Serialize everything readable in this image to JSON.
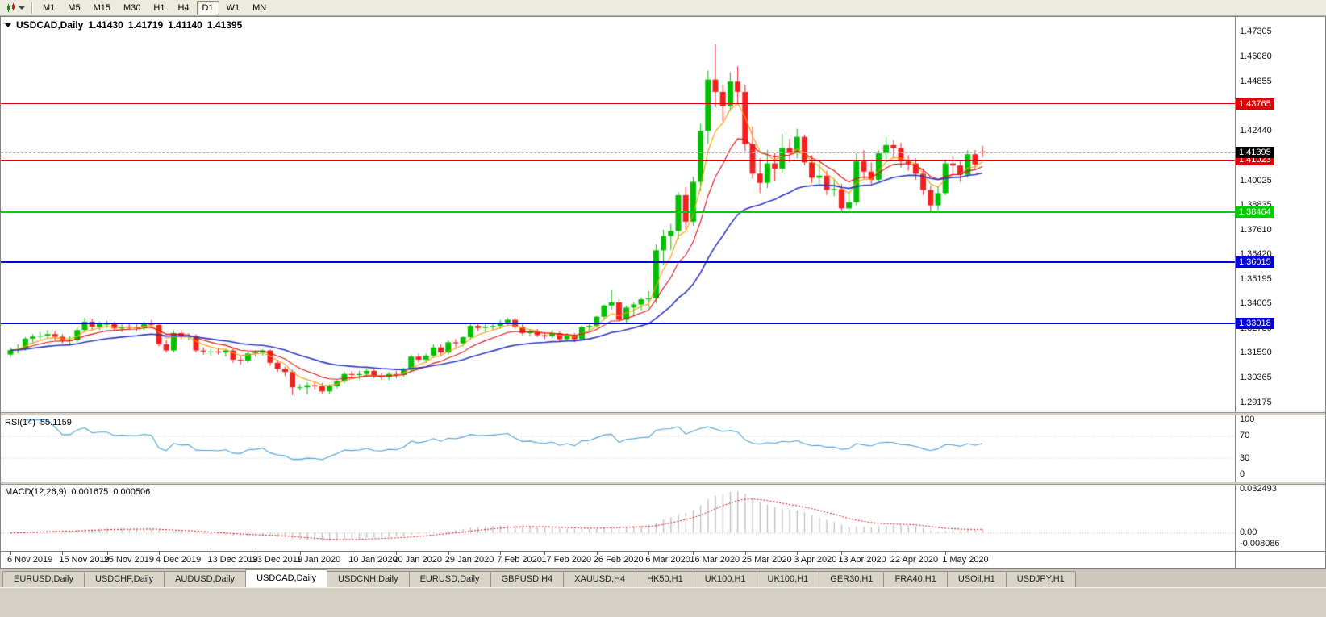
{
  "toolbar": {
    "timeframes": [
      "M1",
      "M5",
      "M15",
      "M30",
      "H1",
      "H4",
      "D1",
      "W1",
      "MN"
    ],
    "active_timeframe": "D1"
  },
  "chart_header": {
    "symbol": "USDCAD,Daily",
    "open": "1.41430",
    "high": "1.41719",
    "low": "1.41140",
    "close": "1.41395"
  },
  "main_panel": {
    "y_ticks": [
      1.47305,
      1.4608,
      1.44855,
      1.4244,
      1.40025,
      1.38835,
      1.3761,
      1.3642,
      1.35195,
      1.34005,
      1.3278,
      1.3159,
      1.30365,
      1.29175
    ],
    "levels": [
      {
        "label": "1.43765",
        "value": 1.43765,
        "color": "#e00000",
        "weight": 1
      },
      {
        "label": "1.41023",
        "value": 1.41023,
        "color": "#e00000",
        "weight": 1
      },
      {
        "label": "1.38464",
        "value": 1.38464,
        "color": "#00cc00",
        "weight": 2
      },
      {
        "label": "1.36015",
        "value": 1.36015,
        "color": "#0000e0",
        "weight": 2
      },
      {
        "label": "1.33018",
        "value": 1.33018,
        "color": "#0000e0",
        "weight": 2
      }
    ],
    "current_price": {
      "label": "1.41395",
      "value": 1.41395,
      "badge_color": "#000000"
    }
  },
  "rsi_panel": {
    "title": "RSI(14)",
    "value": "55.1159",
    "y_ticks": [
      100,
      70,
      30,
      0
    ],
    "line_color": "#4aa0dc"
  },
  "macd_panel": {
    "title": "MACD(12,26,9)",
    "value_main": "0.001675",
    "value_signal": "0.000506",
    "y_ticks": [
      {
        "label": "0.032493",
        "value": 0.032493
      },
      {
        "label": "0.00",
        "value": 0
      },
      {
        "label": "-0.008086",
        "value": -0.008086
      }
    ],
    "histogram_color": "#b8b8b8",
    "signal_color": "#e00000"
  },
  "x_axis": {
    "labels": [
      {
        "text": "6 Nov 2019",
        "index": 0
      },
      {
        "text": "15 Nov 2019",
        "index": 7
      },
      {
        "text": "25 Nov 2019",
        "index": 13
      },
      {
        "text": "4 Dec 2019",
        "index": 20
      },
      {
        "text": "13 Dec 2019",
        "index": 27
      },
      {
        "text": "23 Dec 2019",
        "index": 33
      },
      {
        "text": "1 Jan 2020",
        "index": 39
      },
      {
        "text": "10 Jan 2020",
        "index": 46
      },
      {
        "text": "20 Jan 2020",
        "index": 52
      },
      {
        "text": "29 Jan 2020",
        "index": 59
      },
      {
        "text": "7 Feb 2020",
        "index": 66
      },
      {
        "text": "17 Feb 2020",
        "index": 72
      },
      {
        "text": "26 Feb 2020",
        "index": 79
      },
      {
        "text": "6 Mar 2020",
        "index": 86
      },
      {
        "text": "16 Mar 2020",
        "index": 92
      },
      {
        "text": "25 Mar 2020",
        "index": 99
      },
      {
        "text": "3 Apr 2020",
        "index": 106
      },
      {
        "text": "13 Apr 2020",
        "index": 112
      },
      {
        "text": "22 Apr 2020",
        "index": 119
      },
      {
        "text": "1 May 2020",
        "index": 126
      }
    ]
  },
  "tabs": [
    "EURUSD,Daily",
    "USDCHF,Daily",
    "AUDUSD,Daily",
    "USDCAD,Daily",
    "USDCNH,Daily",
    "EURUSD,Daily",
    "GBPUSD,H4",
    "XAUUSD,H4",
    "HK50,H1",
    "UK100,H1",
    "UK100,H1",
    "GER30,H1",
    "FRA40,H1",
    "USOil,H1",
    "USDJPY,H1"
  ],
  "active_tab_index": 3,
  "chart_data": {
    "type": "candlestick",
    "symbol": "USDCAD",
    "timeframe": "Daily",
    "ohlc_current": [
      1.4143,
      1.41719,
      1.4114,
      1.41395
    ],
    "ylim": [
      1.29,
      1.477
    ],
    "bull_color": "#00bf00",
    "bear_color": "#f42020",
    "moving_averages": [
      {
        "type": "ema",
        "period": 5,
        "color": "#ff9a00"
      },
      {
        "type": "ema",
        "period": 10,
        "color": "#e01010"
      },
      {
        "type": "ema",
        "period": 26,
        "color": "#2a35c8"
      }
    ],
    "indicators": [
      {
        "type": "RSI",
        "period": 14,
        "current": 55.1159,
        "range": [
          0,
          100
        ],
        "guides": [
          70,
          30
        ]
      },
      {
        "type": "MACD",
        "fast": 12,
        "slow": 26,
        "signal": 9,
        "current_macd": 0.001675,
        "current_signal": 0.000506,
        "range": [
          -0.008086,
          0.032493
        ]
      }
    ],
    "candles": [
      [
        1.315,
        1.3185,
        1.3135,
        1.3172
      ],
      [
        1.3172,
        1.32,
        1.3155,
        1.3177
      ],
      [
        1.3177,
        1.3235,
        1.317,
        1.3228
      ],
      [
        1.3228,
        1.325,
        1.321,
        1.3238
      ],
      [
        1.3238,
        1.326,
        1.322,
        1.3242
      ],
      [
        1.3242,
        1.327,
        1.3228,
        1.325
      ],
      [
        1.325,
        1.3265,
        1.322,
        1.3237
      ],
      [
        1.3237,
        1.325,
        1.3205,
        1.322
      ],
      [
        1.322,
        1.324,
        1.32,
        1.322
      ],
      [
        1.322,
        1.328,
        1.321,
        1.327
      ],
      [
        1.327,
        1.333,
        1.326,
        1.331
      ],
      [
        1.331,
        1.3325,
        1.327,
        1.3285
      ],
      [
        1.3285,
        1.331,
        1.327,
        1.33
      ],
      [
        1.33,
        1.3315,
        1.328,
        1.33
      ],
      [
        1.33,
        1.331,
        1.3265,
        1.3278
      ],
      [
        1.3278,
        1.33,
        1.326,
        1.3285
      ],
      [
        1.3285,
        1.33,
        1.327,
        1.3283
      ],
      [
        1.3283,
        1.33,
        1.3265,
        1.3282
      ],
      [
        1.3282,
        1.331,
        1.327,
        1.33
      ],
      [
        1.33,
        1.332,
        1.328,
        1.3295
      ],
      [
        1.3295,
        1.3305,
        1.319,
        1.32
      ],
      [
        1.32,
        1.322,
        1.316,
        1.317
      ],
      [
        1.317,
        1.327,
        1.316,
        1.3255
      ],
      [
        1.3255,
        1.327,
        1.3225,
        1.3235
      ],
      [
        1.3235,
        1.3255,
        1.322,
        1.324
      ],
      [
        1.324,
        1.325,
        1.316,
        1.317
      ],
      [
        1.317,
        1.3185,
        1.315,
        1.3165
      ],
      [
        1.3165,
        1.318,
        1.3145,
        1.3165
      ],
      [
        1.3165,
        1.318,
        1.315,
        1.316
      ],
      [
        1.316,
        1.3175,
        1.314,
        1.317
      ],
      [
        1.317,
        1.318,
        1.311,
        1.3125
      ],
      [
        1.3125,
        1.314,
        1.31,
        1.312
      ],
      [
        1.312,
        1.3165,
        1.311,
        1.3155
      ],
      [
        1.3155,
        1.317,
        1.314,
        1.316
      ],
      [
        1.316,
        1.3175,
        1.3145,
        1.317
      ],
      [
        1.317,
        1.3175,
        1.3095,
        1.311
      ],
      [
        1.311,
        1.3125,
        1.3065,
        1.308
      ],
      [
        1.308,
        1.309,
        1.3045,
        1.3065
      ],
      [
        1.3065,
        1.3075,
        1.2952,
        1.299
      ],
      [
        1.299,
        1.3005,
        1.2975,
        1.299
      ],
      [
        1.299,
        1.3015,
        1.2955,
        1.3
      ],
      [
        1.3,
        1.302,
        1.298,
        1.2995
      ],
      [
        1.2995,
        1.301,
        1.296,
        1.297
      ],
      [
        1.297,
        1.3005,
        1.296,
        1.2995
      ],
      [
        1.2995,
        1.303,
        1.2985,
        1.302
      ],
      [
        1.302,
        1.3065,
        1.301,
        1.3055
      ],
      [
        1.3055,
        1.307,
        1.3035,
        1.305
      ],
      [
        1.305,
        1.307,
        1.303,
        1.3055
      ],
      [
        1.3055,
        1.308,
        1.304,
        1.307
      ],
      [
        1.307,
        1.308,
        1.3035,
        1.3045
      ],
      [
        1.3045,
        1.306,
        1.3025,
        1.304
      ],
      [
        1.304,
        1.3065,
        1.3025,
        1.3055
      ],
      [
        1.3055,
        1.307,
        1.3035,
        1.305
      ],
      [
        1.305,
        1.3085,
        1.304,
        1.3075
      ],
      [
        1.3075,
        1.315,
        1.3065,
        1.314
      ],
      [
        1.314,
        1.3155,
        1.311,
        1.3125
      ],
      [
        1.3125,
        1.3155,
        1.311,
        1.3145
      ],
      [
        1.3145,
        1.32,
        1.3135,
        1.3185
      ],
      [
        1.3185,
        1.32,
        1.315,
        1.316
      ],
      [
        1.316,
        1.322,
        1.315,
        1.321
      ],
      [
        1.321,
        1.3225,
        1.3185,
        1.3205
      ],
      [
        1.3205,
        1.324,
        1.319,
        1.3235
      ],
      [
        1.3235,
        1.33,
        1.3225,
        1.329
      ],
      [
        1.329,
        1.3305,
        1.3265,
        1.328
      ],
      [
        1.328,
        1.33,
        1.326,
        1.3285
      ],
      [
        1.3285,
        1.3305,
        1.327,
        1.329
      ],
      [
        1.329,
        1.332,
        1.3275,
        1.3305
      ],
      [
        1.3305,
        1.333,
        1.329,
        1.332
      ],
      [
        1.332,
        1.333,
        1.3275,
        1.3285
      ],
      [
        1.3285,
        1.33,
        1.3245,
        1.3255
      ],
      [
        1.3255,
        1.3275,
        1.324,
        1.326
      ],
      [
        1.326,
        1.3275,
        1.3235,
        1.3245
      ],
      [
        1.3245,
        1.326,
        1.3225,
        1.324
      ],
      [
        1.324,
        1.327,
        1.323,
        1.3255
      ],
      [
        1.3255,
        1.3265,
        1.3215,
        1.3225
      ],
      [
        1.3225,
        1.3255,
        1.3215,
        1.3245
      ],
      [
        1.3245,
        1.3255,
        1.321,
        1.3225
      ],
      [
        1.3225,
        1.329,
        1.3215,
        1.3285
      ],
      [
        1.3285,
        1.3305,
        1.3265,
        1.329
      ],
      [
        1.329,
        1.334,
        1.328,
        1.3335
      ],
      [
        1.3335,
        1.3395,
        1.332,
        1.339
      ],
      [
        1.339,
        1.3465,
        1.337,
        1.3405
      ],
      [
        1.3405,
        1.342,
        1.331,
        1.332
      ],
      [
        1.332,
        1.339,
        1.33,
        1.338
      ],
      [
        1.338,
        1.3405,
        1.334,
        1.3395
      ],
      [
        1.3395,
        1.343,
        1.3365,
        1.342
      ],
      [
        1.342,
        1.346,
        1.338,
        1.3425
      ],
      [
        1.3425,
        1.369,
        1.34,
        1.366
      ],
      [
        1.366,
        1.376,
        1.359,
        1.373
      ],
      [
        1.373,
        1.379,
        1.366,
        1.3755
      ],
      [
        1.3755,
        1.3945,
        1.3715,
        1.393
      ],
      [
        1.393,
        1.397,
        1.376,
        1.38
      ],
      [
        1.38,
        1.402,
        1.378,
        1.3995
      ],
      [
        1.3995,
        1.428,
        1.395,
        1.4245
      ],
      [
        1.4245,
        1.454,
        1.418,
        1.4495
      ],
      [
        1.4495,
        1.4668,
        1.436,
        1.4435
      ],
      [
        1.4435,
        1.447,
        1.429,
        1.4365
      ],
      [
        1.4365,
        1.453,
        1.434,
        1.4485
      ],
      [
        1.4485,
        1.456,
        1.438,
        1.4435
      ],
      [
        1.4435,
        1.447,
        1.4145,
        1.418
      ],
      [
        1.418,
        1.4265,
        1.401,
        1.4035
      ],
      [
        1.4035,
        1.411,
        1.394,
        1.399
      ],
      [
        1.399,
        1.415,
        1.3965,
        1.4085
      ],
      [
        1.4085,
        1.4135,
        1.4,
        1.406
      ],
      [
        1.406,
        1.423,
        1.404,
        1.416
      ],
      [
        1.416,
        1.4205,
        1.409,
        1.4135
      ],
      [
        1.4135,
        1.4255,
        1.411,
        1.4215
      ],
      [
        1.4215,
        1.4225,
        1.4075,
        1.409
      ],
      [
        1.409,
        1.4125,
        1.399,
        1.4015
      ],
      [
        1.4015,
        1.409,
        1.3985,
        1.4025
      ],
      [
        1.4025,
        1.405,
        1.393,
        1.3955
      ],
      [
        1.3955,
        1.401,
        1.3925,
        1.396
      ],
      [
        1.396,
        1.3985,
        1.3855,
        1.3865
      ],
      [
        1.3865,
        1.3945,
        1.385,
        1.3895
      ],
      [
        1.3895,
        1.4135,
        1.388,
        1.4095
      ],
      [
        1.4095,
        1.415,
        1.401,
        1.4045
      ],
      [
        1.4045,
        1.409,
        1.3985,
        1.4005
      ],
      [
        1.4005,
        1.415,
        1.3995,
        1.4135
      ],
      [
        1.4135,
        1.4215,
        1.4095,
        1.4175
      ],
      [
        1.4175,
        1.42,
        1.411,
        1.416
      ],
      [
        1.416,
        1.4185,
        1.4065,
        1.4095
      ],
      [
        1.4095,
        1.4125,
        1.405,
        1.4085
      ],
      [
        1.4085,
        1.411,
        1.4005,
        1.4035
      ],
      [
        1.4035,
        1.406,
        1.393,
        1.3955
      ],
      [
        1.3955,
        1.3975,
        1.385,
        1.388
      ],
      [
        1.388,
        1.397,
        1.3855,
        1.394
      ],
      [
        1.394,
        1.4105,
        1.393,
        1.4085
      ],
      [
        1.4085,
        1.412,
        1.403,
        1.4075
      ],
      [
        1.4075,
        1.4095,
        1.3995,
        1.403
      ],
      [
        1.403,
        1.415,
        1.4015,
        1.413
      ],
      [
        1.413,
        1.415,
        1.406,
        1.408
      ],
      [
        1.4143,
        1.41719,
        1.4114,
        1.41395
      ]
    ]
  }
}
